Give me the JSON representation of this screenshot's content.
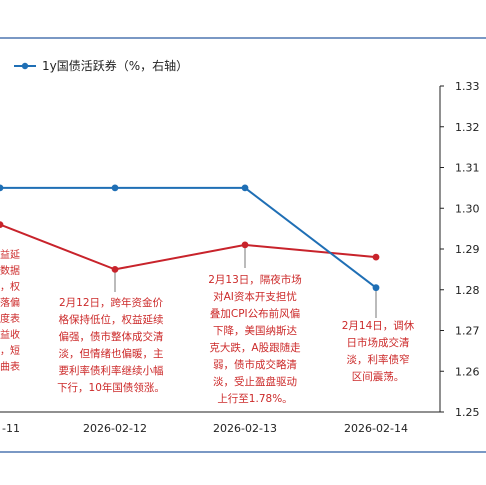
{
  "chart_data": {
    "type": "line",
    "x": [
      "-11",
      "2026-02-12",
      "2026-02-13",
      "2026-02-14"
    ],
    "series": [
      {
        "name": "",
        "color": "#c8232b",
        "values": [
          1.296,
          1.285,
          1.291,
          1.288
        ]
      },
      {
        "name": "1y国债活跃券（%，右轴）",
        "color": "#1f6fb5",
        "values": [
          1.305,
          1.305,
          1.305,
          1.2805
        ]
      }
    ],
    "y_right": {
      "min": 1.25,
      "max": 1.33,
      "ticks": [
        "1.33",
        "1.32",
        "1.31",
        "1.30",
        "1.29",
        "1.28",
        "1.27",
        "1.26",
        "1.25"
      ]
    },
    "legend_position": "top-left",
    "grid": false,
    "annotations": [
      {
        "id": "a0",
        "text": "益延\n数据\n，权\n落偏\n度表\n益收\n，短\n曲表"
      },
      {
        "id": "a1",
        "text": "2月12日，跨年资金价\n格保持低位，权益延续\n偏强，债市整体成交清\n淡，但情绪也偏暖，主\n要利率债利率继续小幅\n下行，10年国债领涨。"
      },
      {
        "id": "a2",
        "text": "2月13日，隔夜市场\n对AI资本开支担忧\n叠加CPI公布前风偏\n下降，美国纳斯达\n克大跌，A股跟随走\n弱，债市成交略清\n淡，受止盈盘驱动\n上行至1.78%。"
      },
      {
        "id": "a3",
        "text": "2月14日，调休\n日市场成交清\n淡，利率债窄\n区间震荡。"
      }
    ]
  }
}
